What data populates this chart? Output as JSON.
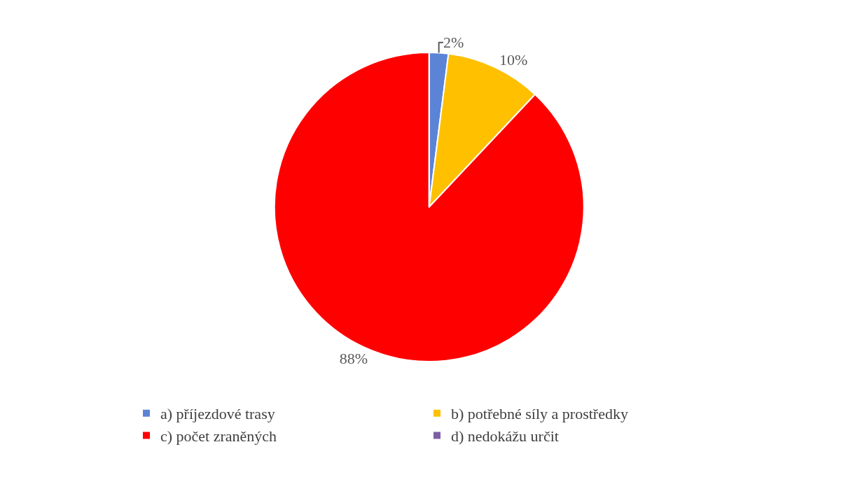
{
  "chart_data": {
    "type": "pie",
    "categories": [
      "a) příjezdové trasy",
      "b) potřebné síly a prostředky",
      "c) počet zraněných",
      "d) nedokážu určit"
    ],
    "values": [
      2,
      10,
      88,
      0
    ],
    "colors": [
      "#5b84d6",
      "#ffc000",
      "#ff0000",
      "#7d5fa6"
    ],
    "value_labels": [
      "2%",
      "10%",
      "88%",
      null
    ],
    "legend": "bottom"
  }
}
